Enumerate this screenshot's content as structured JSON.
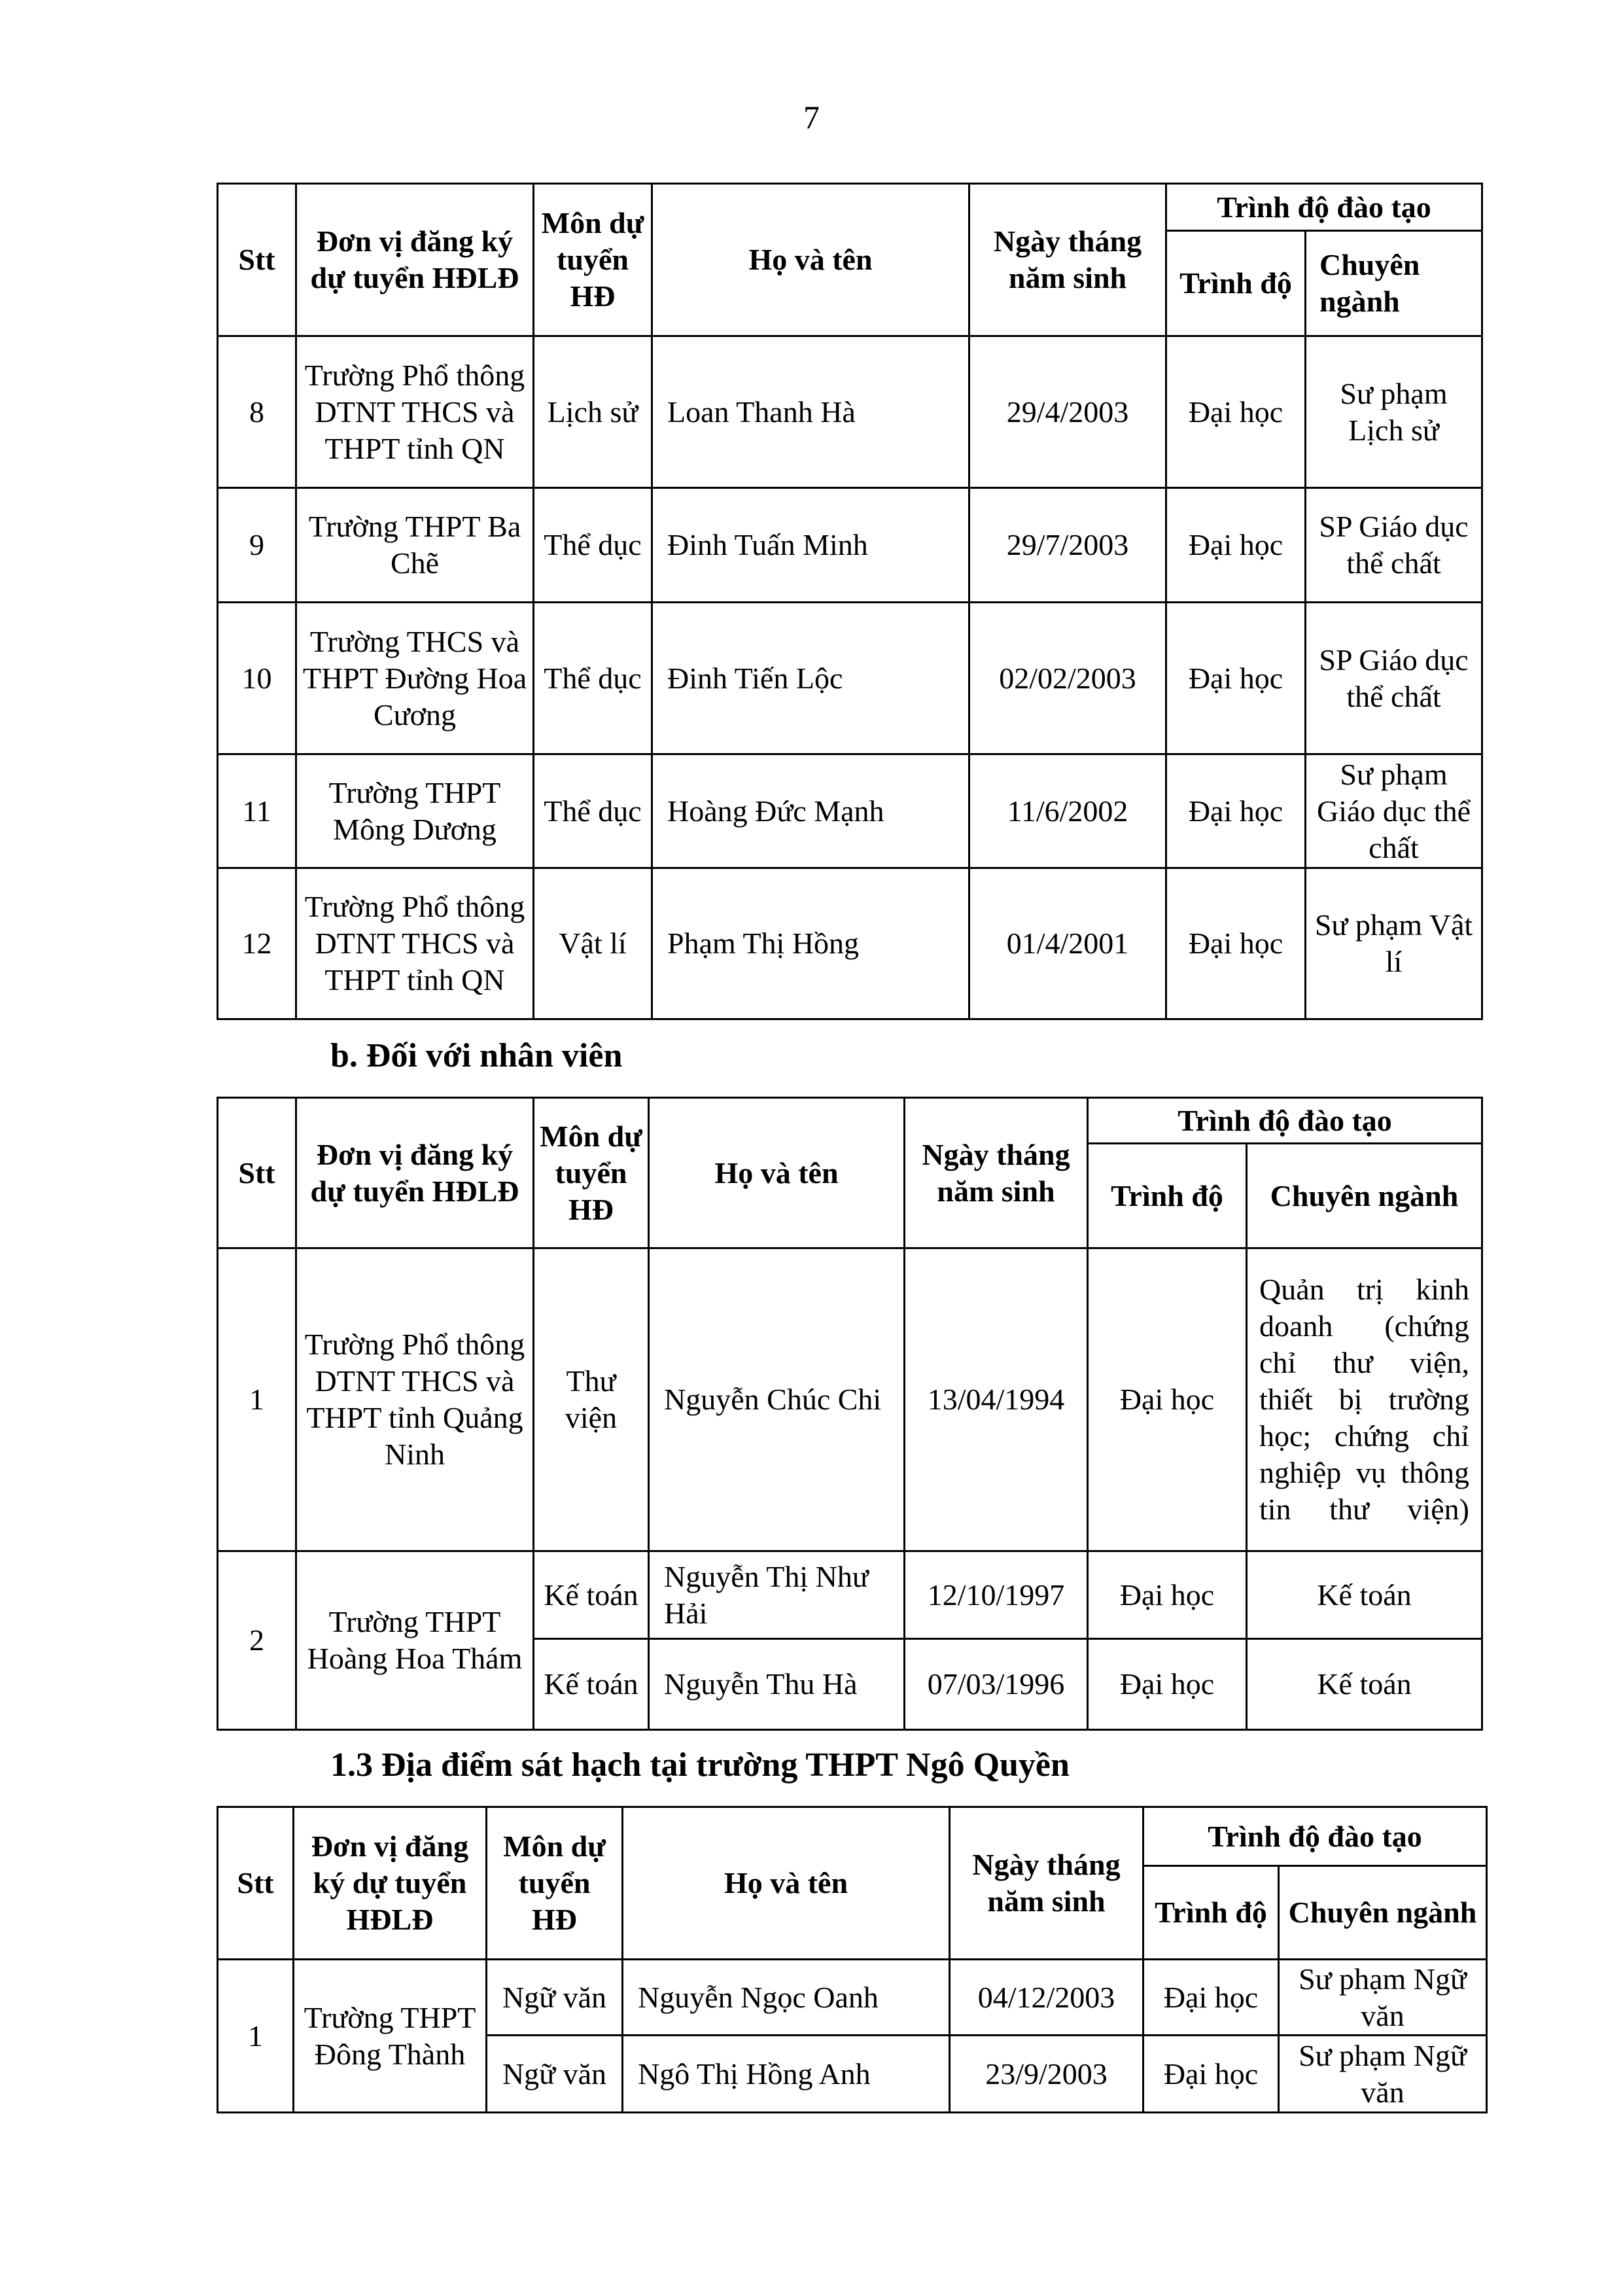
{
  "page_number": "7",
  "header": {
    "stt": "Stt",
    "unit": "Đơn vị đăng ký dự tuyển HĐLĐ",
    "subject": "Môn dự tuyển HĐ",
    "name": "Họ và tên",
    "dob": "Ngày tháng năm sinh",
    "dob_alt": "Ngày tháng năm sinh",
    "training": "Trình độ đào tạo",
    "level": "Trình độ",
    "major": "Chuyên ngành"
  },
  "table1": {
    "rows": [
      {
        "stt": "8",
        "unit": "Trường Phổ thông DTNT THCS và THPT tỉnh QN",
        "subject": "Lịch sử",
        "name": "Loan Thanh Hà",
        "dob": "29/4/2003",
        "level": "Đại học",
        "major": "Sư phạm Lịch sử"
      },
      {
        "stt": "9",
        "unit": "Trường THPT Ba Chẽ",
        "subject": "Thể dục",
        "name": "Đinh Tuấn Minh",
        "dob": "29/7/2003",
        "level": "Đại học",
        "major": "SP Giáo dục thể chất"
      },
      {
        "stt": "10",
        "unit": "Trường THCS và THPT Đường Hoa Cương",
        "subject": "Thể dục",
        "name": "Đinh Tiến Lộc",
        "dob": "02/02/2003",
        "level": "Đại học",
        "major": "SP Giáo dục thể chất"
      },
      {
        "stt": "11",
        "unit": "Trường THPT Mông Dương",
        "subject": "Thể dục",
        "name": "Hoàng Đức Mạnh",
        "dob": "11/6/2002",
        "level": "Đại học",
        "major": "Sư phạm Giáo dục thể chất"
      },
      {
        "stt": "12",
        "unit": "Trường Phổ thông DTNT THCS và THPT tỉnh QN",
        "subject": "Vật lí",
        "name": "Phạm Thị Hồng",
        "dob": "01/4/2001",
        "level": "Đại học",
        "major": "Sư phạm Vật lí"
      }
    ]
  },
  "section_b": "b. Đối với nhân viên",
  "table2": {
    "rows": [
      {
        "stt": "1",
        "unit": "Trường Phổ thông DTNT THCS và THPT tỉnh Quảng Ninh",
        "subject": "Thư viện",
        "name": "Nguyễn Chúc Chi",
        "dob": "13/04/1994",
        "level": "Đại học",
        "major": "Quản trị kinh doanh (chứng chỉ thư viện, thiết bị trường học; chứng chỉ nghiệp vụ thông tin thư viện)"
      },
      {
        "stt": "2",
        "unit": "Trường THPT Hoàng Hoa Thám",
        "subject": "Kế toán",
        "name": "Nguyễn Thị Như Hải",
        "dob": "12/10/1997",
        "level": "Đại học",
        "major": "Kế toán"
      },
      {
        "subject": "Kế toán",
        "name": "Nguyễn Thu Hà",
        "dob": "07/03/1996",
        "level": "Đại học",
        "major": "Kế toán"
      }
    ]
  },
  "section_13": "1.3 Địa điểm sát hạch tại trường THPT Ngô Quyền",
  "table3": {
    "rows": [
      {
        "stt": "1",
        "unit": "Trường THPT Đông Thành",
        "subject": "Ngữ văn",
        "name": "Nguyễn Ngọc Oanh",
        "dob": "04/12/2003",
        "level": "Đại học",
        "major": "Sư phạm Ngữ văn"
      },
      {
        "subject": "Ngữ văn",
        "name": "Ngô Thị Hồng Anh",
        "dob": "23/9/2003",
        "level": "Đại học",
        "major": "Sư phạm Ngữ văn"
      }
    ]
  }
}
